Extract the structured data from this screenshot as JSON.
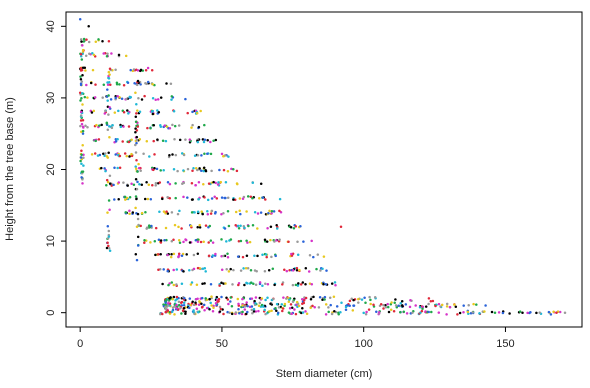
{
  "chart_data": {
    "type": "scatter",
    "title": "",
    "xlabel": "Stem diameter (cm)",
    "ylabel": "Height from the tree base (m)",
    "xlim": [
      -5,
      177
    ],
    "ylim": [
      -2,
      42
    ],
    "xticks": [
      0,
      50,
      100,
      150
    ],
    "yticks": [
      0,
      10,
      20,
      30,
      40
    ],
    "grid": false,
    "legend": "none",
    "point_colors": [
      "#000000",
      "#e0283a",
      "#1fa84a",
      "#2a63d9",
      "#1fb8d6",
      "#d634c9",
      "#e8c81f",
      "#9a9a9a"
    ],
    "height_levels": [
      0,
      1,
      2,
      4,
      6,
      8,
      10,
      12,
      14,
      16,
      18,
      20,
      22,
      24,
      26,
      28,
      30,
      32,
      34,
      36,
      38
    ],
    "envelope": {
      "description_points": [
        {
          "height": 0,
          "min_diameter": 28,
          "max_diameter": 170
        },
        {
          "height": 2,
          "min_diameter": 30,
          "max_diameter": 110
        },
        {
          "height": 4,
          "min_diameter": 29,
          "max_diameter": 92
        },
        {
          "height": 8,
          "min_diameter": 26,
          "max_diameter": 86
        },
        {
          "height": 12,
          "min_diameter": 19,
          "max_diameter": 78
        },
        {
          "height": 16,
          "min_diameter": 12,
          "max_diameter": 72
        },
        {
          "height": 20,
          "min_diameter": 6,
          "max_diameter": 56
        },
        {
          "height": 24,
          "min_diameter": 2,
          "max_diameter": 49
        },
        {
          "height": 28,
          "min_diameter": 0,
          "max_diameter": 43
        },
        {
          "height": 32,
          "min_diameter": 0,
          "max_diameter": 33
        },
        {
          "height": 36,
          "min_diameter": 0,
          "max_diameter": 18
        },
        {
          "height": 40,
          "min_diameter": 0,
          "max_diameter": 5
        }
      ]
    },
    "outliers": [
      {
        "x": 0,
        "y": 41
      },
      {
        "x": 3,
        "y": 40
      },
      {
        "x": 92,
        "y": 12
      },
      {
        "x": 123,
        "y": 2
      },
      {
        "x": 168,
        "y": 0
      },
      {
        "x": 171,
        "y": 0
      },
      {
        "x": 156,
        "y": 0
      },
      {
        "x": 143,
        "y": 1
      }
    ]
  }
}
